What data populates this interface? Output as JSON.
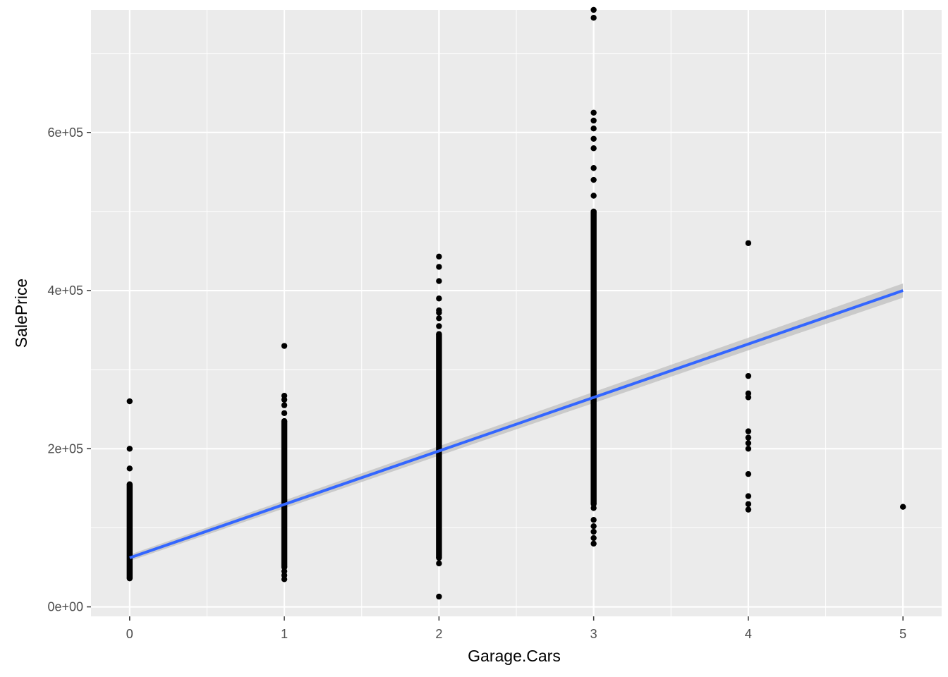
{
  "chart_data": {
    "type": "scatter",
    "xlabel": "Garage.Cars",
    "ylabel": "SalePrice",
    "xlim": [
      -0.25,
      5.25
    ],
    "ylim": [
      -12000,
      755000
    ],
    "x_ticks": [
      0,
      1,
      2,
      3,
      4,
      5
    ],
    "x_tick_labels": [
      "0",
      "1",
      "2",
      "3",
      "4",
      "5"
    ],
    "y_ticks": [
      0,
      200000,
      400000,
      600000
    ],
    "y_tick_labels": [
      "0e+00",
      "2e+05",
      "4e+05",
      "6e+05"
    ],
    "grid": true,
    "legend": "none",
    "panel_color": "#ebebeb",
    "grid_color": "#ffffff",
    "point_color": "#000000",
    "trend_color": "#3366ff",
    "band_color": "#bfbfbf",
    "points": [
      {
        "x": 0,
        "range": [
          36000,
          155000
        ],
        "extras": [
          175000,
          200000,
          260000
        ]
      },
      {
        "x": 1,
        "range": [
          50000,
          235000
        ],
        "extras": [
          35000,
          40000,
          45000,
          245000,
          255000,
          262000,
          267000,
          330000
        ]
      },
      {
        "x": 2,
        "range": [
          62000,
          345000
        ],
        "extras": [
          13000,
          55000,
          355000,
          365000,
          372000,
          375000,
          390000,
          412000,
          430000,
          443000
        ]
      },
      {
        "x": 3,
        "range": [
          130000,
          500000
        ],
        "extras": [
          80000,
          87000,
          95000,
          102000,
          110000,
          125000,
          520000,
          540000,
          555000,
          580000,
          592000,
          605000,
          615000,
          625000,
          745000,
          755000
        ]
      },
      {
        "x": 4,
        "range": null,
        "extras": [
          123000,
          130000,
          140000,
          168000,
          200000,
          207000,
          214000,
          222000,
          265000,
          270000,
          292000,
          460000
        ]
      },
      {
        "x": 5,
        "range": null,
        "extras": [
          126500
        ]
      }
    ],
    "trend": {
      "x": [
        0,
        5
      ],
      "y": [
        62000,
        400000
      ],
      "band": [
        4000,
        9000
      ]
    }
  }
}
